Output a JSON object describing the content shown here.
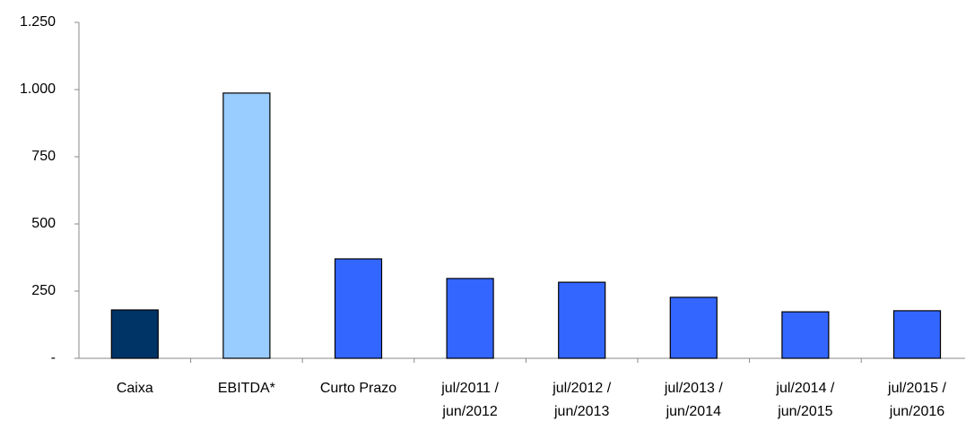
{
  "chart_data": {
    "type": "bar",
    "categories": [
      "Caixa",
      "EBITDA*",
      "Curto Prazo",
      "jul/2011 / jun/2012",
      "jul/2012 / jun/2013",
      "jul/2013 / jun/2014",
      "jul/2014 / jun/2015",
      "jul/2015 / jun/2016"
    ],
    "values": [
      180,
      987,
      370,
      297,
      283,
      227,
      173,
      177
    ],
    "colors": [
      "#003366",
      "#99ccff",
      "#3366ff",
      "#3366ff",
      "#3366ff",
      "#3366ff",
      "#3366ff",
      "#3366ff"
    ],
    "ylim": [
      0,
      1250
    ],
    "yticks": [
      {
        "value": 0,
        "label": "-"
      },
      250,
      500,
      750,
      {
        "value": 1000,
        "label": "1.000"
      },
      {
        "value": 1250,
        "label": "1.250"
      }
    ],
    "grid": false
  }
}
